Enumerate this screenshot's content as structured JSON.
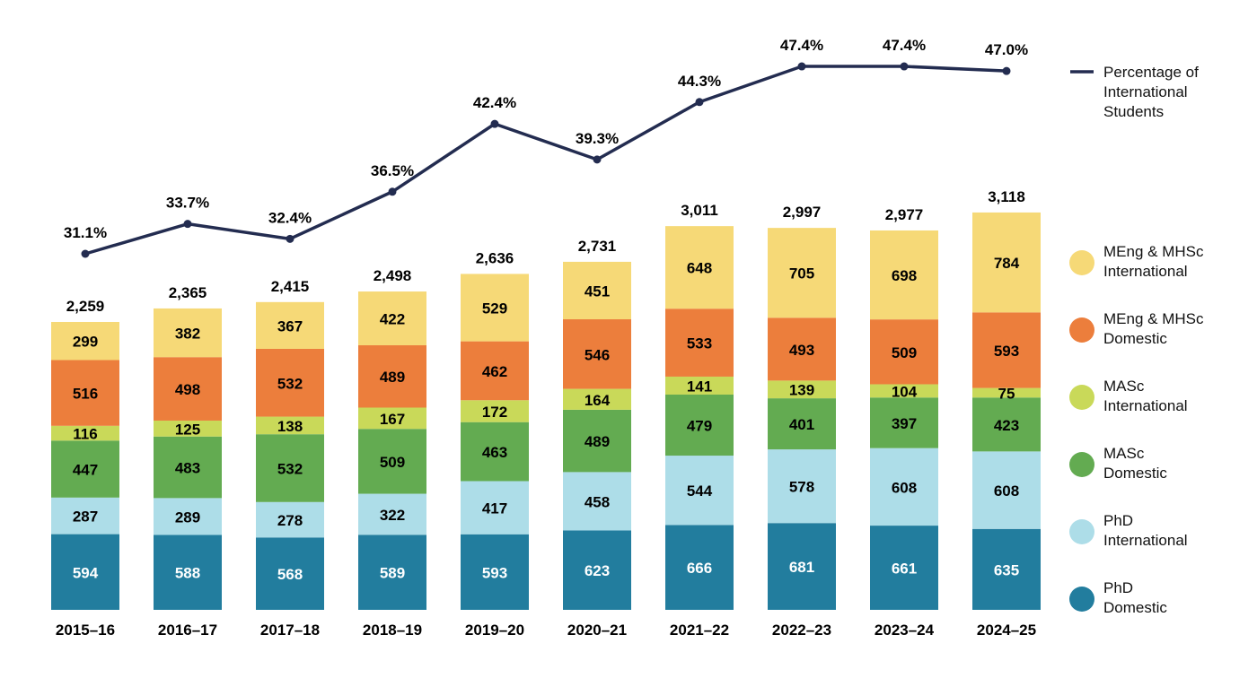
{
  "chart_data": {
    "type": "bar",
    "stacked": true,
    "title": "",
    "xlabel": "",
    "ylabel": "",
    "categories": [
      "2015–16",
      "2016–17",
      "2017–18",
      "2018–19",
      "2019–20",
      "2020–21",
      "2021–22",
      "2022–23",
      "2023–24",
      "2024–25"
    ],
    "series": [
      {
        "name": "PhD Domestic",
        "legend_line1": "PhD",
        "legend_line2": "Domestic",
        "color": "#227D9E",
        "label_color": "#ffffff",
        "values": [
          594,
          588,
          568,
          589,
          593,
          623,
          666,
          681,
          661,
          635
        ]
      },
      {
        "name": "PhD International",
        "legend_line1": "PhD",
        "legend_line2": "International",
        "color": "#ADDDE8",
        "label_color": "#000000",
        "values": [
          287,
          289,
          278,
          322,
          417,
          458,
          544,
          578,
          608,
          608
        ]
      },
      {
        "name": "MASc Domestic",
        "legend_line1": "MASc",
        "legend_line2": "Domestic",
        "color": "#63AB51",
        "label_color": "#000000",
        "values": [
          447,
          483,
          532,
          509,
          463,
          489,
          479,
          401,
          397,
          423
        ]
      },
      {
        "name": "MASc International",
        "legend_line1": "MASc",
        "legend_line2": "International",
        "color": "#C9D959",
        "label_color": "#000000",
        "values": [
          116,
          125,
          138,
          167,
          172,
          164,
          141,
          139,
          104,
          75
        ]
      },
      {
        "name": "MEng & MHSc Domestic",
        "legend_line1": "MEng & MHSc",
        "legend_line2": "Domestic",
        "color": "#EC7E3C",
        "label_color": "#000000",
        "values": [
          516,
          498,
          532,
          489,
          462,
          546,
          533,
          493,
          509,
          593
        ]
      },
      {
        "name": "MEng & MHSc International",
        "legend_line1": "MEng & MHSc",
        "legend_line2": "International",
        "color": "#F6D977",
        "label_color": "#000000",
        "values": [
          299,
          382,
          367,
          422,
          529,
          451,
          648,
          705,
          698,
          784
        ]
      }
    ],
    "totals": [
      "2,259",
      "2,365",
      "2,415",
      "2,498",
      "2,636",
      "2,731",
      "3,011",
      "2,997",
      "2,977",
      "3,118"
    ],
    "line_series": {
      "name": "Percentage of International Students",
      "legend_lines": [
        "Percentage of",
        "International",
        "Students"
      ],
      "color": "#232C50",
      "values": [
        31.1,
        33.7,
        32.4,
        36.5,
        42.4,
        39.3,
        44.3,
        47.4,
        47.4,
        47.0
      ],
      "labels": [
        "31.1%",
        "33.7%",
        "32.4%",
        "36.5%",
        "42.4%",
        "39.3%",
        "44.3%",
        "47.4%",
        "47.4%",
        "47.0%"
      ]
    },
    "grid": false,
    "y_axis_visible": false,
    "legend_position": "right"
  }
}
